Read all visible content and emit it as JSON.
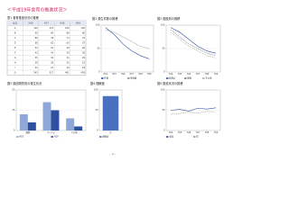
{
  "title": "＜平成19年食育の推進状況＞",
  "page_number": "- 1 -",
  "table": {
    "caption": "表1 食育推進状況の推移",
    "header": [
      "区分",
      "H16",
      "H17",
      "H18",
      "H19"
    ],
    "rows": [
      [
        "A",
        120,
        115,
        108,
        100
      ],
      [
        "B",
        95,
        90,
        86,
        80
      ],
      [
        "C",
        80,
        78,
        74,
        70
      ],
      [
        "D",
        66,
        62,
        60,
        57
      ],
      [
        "E",
        54,
        51,
        49,
        46
      ],
      [
        "F",
        43,
        41,
        39,
        36
      ],
      [
        "G",
        35,
        33,
        31,
        29
      ],
      [
        "H",
        28,
        26,
        25,
        23
      ],
      [
        "I",
        22,
        21,
        19,
        18
      ],
      [
        "計",
        543,
        517,
        491,
        459
      ]
    ]
  },
  "figures": [
    {
      "type": "line",
      "title": "図1 発生件数の推移",
      "categories": [
        "H14",
        "H15",
        "H16",
        "H17",
        "H18",
        "H19"
      ],
      "series": [
        {
          "name": "件数",
          "color": "#2f4f9f",
          "values": [
            95,
            80,
            60,
            45,
            35,
            28
          ]
        },
        {
          "name": "患者数",
          "color": "#888888",
          "values": [
            90,
            85,
            75,
            65,
            55,
            50
          ]
        }
      ],
      "ylim": [
        0,
        100
      ],
      "yticks": [
        0,
        50,
        100
      ]
    },
    {
      "type": "line",
      "title": "図2 施設別の推移",
      "categories": [
        "H14",
        "H15",
        "H16",
        "H17",
        "H18",
        "H19"
      ],
      "series": [
        {
          "name": "飲食店",
          "color": "#2f4f9f",
          "values": [
            95,
            85,
            70,
            55,
            45,
            40
          ]
        },
        {
          "name": "家庭",
          "color": "#777777",
          "values": [
            90,
            75,
            60,
            50,
            40,
            35
          ]
        },
        {
          "name": "その他",
          "color": "#aaaaaa",
          "values": [
            85,
            70,
            55,
            45,
            35,
            30
          ]
        }
      ],
      "ylim": [
        0,
        100
      ],
      "yticks": [
        0,
        50,
        100
      ]
    },
    {
      "type": "bar",
      "title": "図3 原因物質別の発生状況",
      "categories": [
        "細菌",
        "ウイルス",
        "その他"
      ],
      "series": [
        {
          "name": "H18",
          "color": "#8fa8d8",
          "values": [
            20,
            35,
            15
          ]
        },
        {
          "name": "H19",
          "color": "#2f4f9f",
          "values": [
            10,
            25,
            5
          ]
        }
      ],
      "ylim": [
        0,
        50
      ],
      "yticks": [
        0,
        25,
        50
      ]
    },
    {
      "type": "bar",
      "title": "図4 理解度",
      "categories": [
        "計"
      ],
      "series": [
        {
          "name": "理解度",
          "color": "#4a6fc0",
          "values": [
            85
          ]
        }
      ],
      "ylim": [
        0,
        100
      ],
      "yticks": [
        0,
        50,
        100
      ]
    },
    {
      "type": "line",
      "title": "図5 推進状況の推移",
      "categories": [
        "H14",
        "H15",
        "H16",
        "H17",
        "H18",
        "H19"
      ],
      "series": [
        {
          "name": "全国",
          "color": "#2f4f9f",
          "values": [
            50,
            52,
            48,
            55,
            53,
            56
          ]
        },
        {
          "name": "県",
          "color": "#999999",
          "values": [
            40,
            42,
            45,
            43,
            47,
            46
          ]
        }
      ],
      "ylim": [
        0,
        100
      ],
      "yticks": [
        0,
        50,
        100
      ]
    }
  ]
}
